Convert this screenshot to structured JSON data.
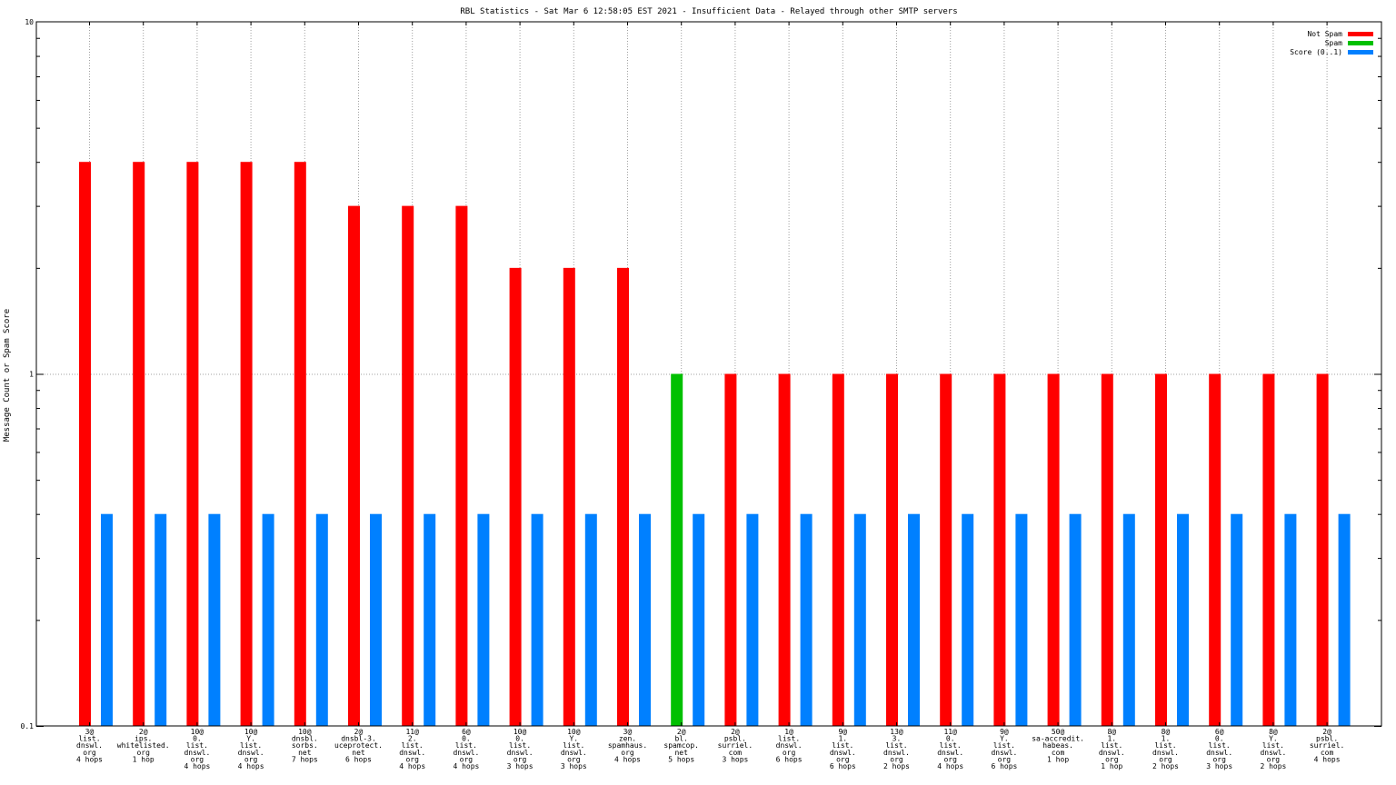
{
  "chart_data": {
    "type": "bar",
    "title": "RBL Statistics - Sat Mar  6 12:58:05 EST 2021 - Insufficient Data - Relayed through other SMTP servers",
    "ylabel": "Message Count or Spam Score",
    "xlabel": "",
    "yscale": "log",
    "ylim": [
      0.1,
      10
    ],
    "yticks": [
      {
        "value": 0.1,
        "label": "0.1"
      },
      {
        "value": 1,
        "label": "1"
      },
      {
        "value": 10,
        "label": "10"
      }
    ],
    "grid": true,
    "legend_position": "top-right",
    "categories": [
      [
        "3@",
        "list.",
        "dnswl.",
        "org",
        "4 hops"
      ],
      [
        "2@",
        "ips.",
        "whitelisted.",
        "org",
        "1 hop"
      ],
      [
        "10@",
        "0.",
        "list.",
        "dnswl.",
        "org",
        "4 hops"
      ],
      [
        "10@",
        "Y.",
        "list.",
        "dnswl.",
        "org",
        "4 hops"
      ],
      [
        "10@",
        "dnsbl.",
        "sorbs.",
        "net",
        "7 hops"
      ],
      [
        "2@",
        "dnsbl-3.",
        "uceprotect.",
        "net",
        "6 hops"
      ],
      [
        "11@",
        "2.",
        "list.",
        "dnswl.",
        "org",
        "4 hops"
      ],
      [
        "6@",
        "0.",
        "list.",
        "dnswl.",
        "org",
        "4 hops"
      ],
      [
        "10@",
        "0.",
        "list.",
        "dnswl.",
        "org",
        "3 hops"
      ],
      [
        "10@",
        "Y.",
        "list.",
        "dnswl.",
        "org",
        "3 hops"
      ],
      [
        "3@",
        "zen.",
        "spamhaus.",
        "org",
        "4 hops"
      ],
      [
        "2@",
        "bl.",
        "spamcop.",
        "net",
        "5 hops"
      ],
      [
        "2@",
        "psbl.",
        "surriel.",
        "com",
        "3 hops"
      ],
      [
        "1@",
        "list.",
        "dnswl.",
        "org",
        "6 hops"
      ],
      [
        "9@",
        "1.",
        "list.",
        "dnswl.",
        "org",
        "6 hops"
      ],
      [
        "13@",
        "3.",
        "list.",
        "dnswl.",
        "org",
        "2 hops"
      ],
      [
        "11@",
        "0.",
        "list.",
        "dnswl.",
        "org",
        "4 hops"
      ],
      [
        "9@",
        "Y.",
        "list.",
        "dnswl.",
        "org",
        "6 hops"
      ],
      [
        "50@",
        "sa-accredit.",
        "habeas.",
        "com",
        "1 hop"
      ],
      [
        "8@",
        "1.",
        "list.",
        "dnswl.",
        "org",
        "1 hop"
      ],
      [
        "8@",
        "1.",
        "list.",
        "dnswl.",
        "org",
        "2 hops"
      ],
      [
        "6@",
        "0.",
        "list.",
        "dnswl.",
        "org",
        "3 hops"
      ],
      [
        "8@",
        "Y.",
        "list.",
        "dnswl.",
        "org",
        "2 hops"
      ],
      [
        "2@",
        "psbl.",
        "surriel.",
        "com",
        "4 hops"
      ]
    ],
    "series": [
      {
        "name": "Not Spam",
        "color": "#ff0000",
        "values": [
          4,
          4,
          4,
          4,
          4,
          3,
          3,
          3,
          2,
          2,
          2,
          0,
          1,
          1,
          1,
          1,
          1,
          1,
          1,
          1,
          1,
          1,
          1,
          1
        ]
      },
      {
        "name": "Spam",
        "color": "#00c000",
        "values": [
          0,
          0,
          0,
          0,
          0,
          0,
          0,
          0,
          0,
          0,
          0,
          1,
          0,
          0,
          0,
          0,
          0,
          0,
          0,
          0,
          0,
          0,
          0,
          0
        ]
      },
      {
        "name": "Score (0..1)",
        "color": "#0080ff",
        "values": [
          0.4,
          0.4,
          0.4,
          0.4,
          0.4,
          0.4,
          0.4,
          0.4,
          0.4,
          0.4,
          0.4,
          0.4,
          0.4,
          0.4,
          0.4,
          0.4,
          0.4,
          0.4,
          0.4,
          0.4,
          0.4,
          0.4,
          0.4,
          0.4
        ]
      }
    ]
  }
}
